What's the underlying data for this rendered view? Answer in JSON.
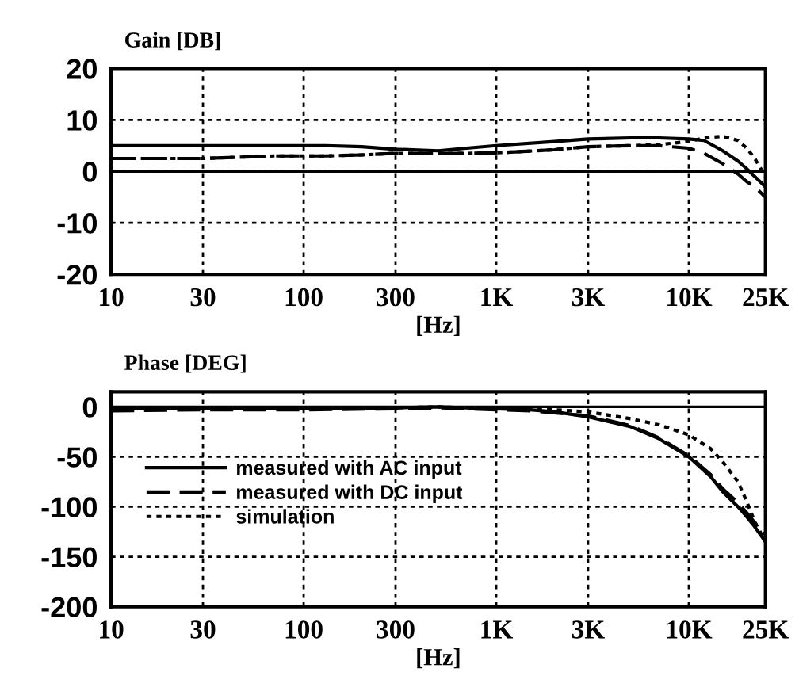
{
  "chart_data": [
    {
      "type": "line",
      "ylabel": "Gain [DB]",
      "xlabel": "[Hz]",
      "log": "x",
      "grid": true,
      "marker": "none",
      "xlim": [
        10,
        25000
      ],
      "xticks": [
        10,
        30,
        100,
        300,
        {
          "value": 1000,
          "label": "1K"
        },
        {
          "value": 3000,
          "label": "3K"
        },
        {
          "value": 10000,
          "label": "10K"
        },
        {
          "value": 25000,
          "label": "25K"
        }
      ],
      "ylim": [
        -20,
        20
      ],
      "yticks": [
        -20,
        -10,
        0,
        10,
        20
      ],
      "ref_lines": [
        {
          "axis": "y",
          "value": 0,
          "color": "#000000",
          "line_style": "solid"
        }
      ],
      "series": [
        {
          "color": "#000000",
          "line_style": "solid",
          "x": [
            10,
            12,
            15,
            20,
            30,
            50,
            70,
            100,
            130,
            200,
            300,
            500,
            700,
            1000,
            2000,
            3000,
            5000,
            7000,
            10000,
            12000,
            15000,
            18000,
            20000,
            22000,
            25000
          ],
          "values": [
            5,
            5,
            5,
            5,
            5,
            5,
            5,
            5,
            5,
            4.8,
            4.3,
            4,
            4.5,
            5,
            5.8,
            6.3,
            6.5,
            6.5,
            6.3,
            6,
            4,
            2,
            0.5,
            -1,
            -3
          ]
        },
        {
          "color": "#000000",
          "line_style": "dashed",
          "x": [
            10,
            12,
            15,
            20,
            30,
            50,
            70,
            100,
            130,
            200,
            300,
            500,
            700,
            1000,
            2000,
            3000,
            5000,
            7000,
            10000,
            12000,
            15000,
            18000,
            20000,
            22000,
            25000
          ],
          "values": [
            2.5,
            2.5,
            2.5,
            2.5,
            2.5,
            2.8,
            3,
            3,
            3,
            3.2,
            3.5,
            3.5,
            3.5,
            3.6,
            4.2,
            4.8,
            5,
            5,
            4.5,
            3.5,
            1.5,
            -0.5,
            -2,
            -3,
            -5
          ]
        },
        {
          "color": "#000000",
          "line_style": "dotted",
          "x": [
            10,
            12,
            15,
            20,
            30,
            50,
            70,
            100,
            130,
            200,
            300,
            500,
            700,
            1000,
            2000,
            3000,
            5000,
            7000,
            10000,
            12000,
            15000,
            18000,
            20000,
            22000,
            25000
          ],
          "values": [
            2.5,
            2.5,
            2.5,
            2.5,
            2.5,
            2.8,
            3,
            3,
            3,
            3.2,
            3.5,
            3.5,
            3.5,
            3.6,
            4.2,
            4.8,
            5,
            5.2,
            5.8,
            6.5,
            6.8,
            6,
            4.5,
            2.5,
            -1
          ]
        }
      ]
    },
    {
      "type": "line",
      "ylabel": "Phase [DEG]",
      "xlabel": "[Hz]",
      "log": "x",
      "grid": true,
      "marker": "none",
      "legend": "center left",
      "xlim": [
        10,
        25000
      ],
      "xticks": [
        10,
        30,
        100,
        300,
        {
          "value": 1000,
          "label": "1K"
        },
        {
          "value": 3000,
          "label": "3K"
        },
        {
          "value": 10000,
          "label": "10K"
        },
        {
          "value": 25000,
          "label": "25K"
        }
      ],
      "ylim": [
        -200,
        15
      ],
      "yticks": [
        -200,
        -150,
        -100,
        -50,
        0
      ],
      "ref_lines": [
        {
          "axis": "y",
          "value": 0,
          "color": "#000000",
          "line_style": "solid"
        }
      ],
      "series": [
        {
          "name": "measured with AC input",
          "color": "#000000",
          "line_style": "solid",
          "x": [
            10,
            30,
            100,
            300,
            500,
            700,
            1000,
            1500,
            2000,
            3000,
            5000,
            7000,
            10000,
            13000,
            15000,
            18000,
            20000,
            22000,
            25000
          ],
          "values": [
            -2,
            -2,
            -2,
            -1,
            0,
            -1,
            -2,
            -3,
            -5,
            -10,
            -20,
            -32,
            -50,
            -70,
            -85,
            -100,
            -110,
            -120,
            -135
          ]
        },
        {
          "name": "measured with DC input",
          "color": "#000000",
          "line_style": "dashed",
          "x": [
            10,
            30,
            100,
            300,
            500,
            700,
            1000,
            1500,
            2000,
            3000,
            5000,
            7000,
            10000,
            13000,
            15000,
            18000,
            20000,
            22000,
            25000
          ],
          "values": [
            -4,
            -3,
            -3,
            -2,
            -1,
            -2,
            -3,
            -4,
            -6,
            -9,
            -19,
            -31,
            -49,
            -68,
            -82,
            -96,
            -106,
            -116,
            -128
          ]
        },
        {
          "name": "simulation",
          "color": "#000000",
          "line_style": "dotted",
          "x": [
            10,
            30,
            100,
            300,
            500,
            700,
            1000,
            1500,
            2000,
            3000,
            5000,
            7000,
            10000,
            13000,
            15000,
            18000,
            20000,
            22000,
            25000
          ],
          "values": [
            -2,
            -2,
            -2,
            -1,
            0,
            -1,
            -1,
            -2,
            -3,
            -5,
            -12,
            -18,
            -28,
            -42,
            -55,
            -75,
            -95,
            -115,
            -135
          ]
        }
      ]
    }
  ]
}
